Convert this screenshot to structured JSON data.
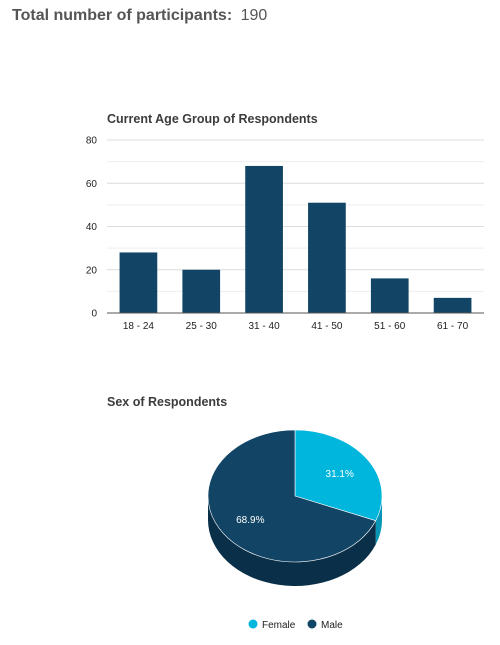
{
  "header": {
    "label": "Total number of participants:",
    "value": "190"
  },
  "chart_data": [
    {
      "type": "bar",
      "title": "Current Age Group of Respondents",
      "categories": [
        "18 - 24",
        "25 - 30",
        "31 - 40",
        "41 - 50",
        "51 - 60",
        "61 - 70"
      ],
      "values": [
        28,
        20,
        68,
        51,
        16,
        7
      ],
      "ylim": [
        0,
        80
      ],
      "yticks": [
        0,
        20,
        40,
        60,
        80
      ],
      "xlabel": "",
      "ylabel": "",
      "grid": true,
      "legend": "none",
      "colors": {
        "bar": "#124565",
        "grid": "#dcdcdc",
        "axis": "#555555"
      }
    },
    {
      "type": "pie",
      "title": "Sex of Respondents",
      "style": "3d",
      "slices": [
        {
          "label": "Female",
          "value": 31.1,
          "display": "31.1%",
          "color": "#00b6dc"
        },
        {
          "label": "Male",
          "value": 68.9,
          "display": "68.9%",
          "color": "#124565"
        }
      ],
      "legend": "bottom",
      "colors": {
        "Female": "#00b6dc",
        "Male": "#124565",
        "Female_side": "#0796b5",
        "Male_side": "#0a3049"
      }
    }
  ]
}
